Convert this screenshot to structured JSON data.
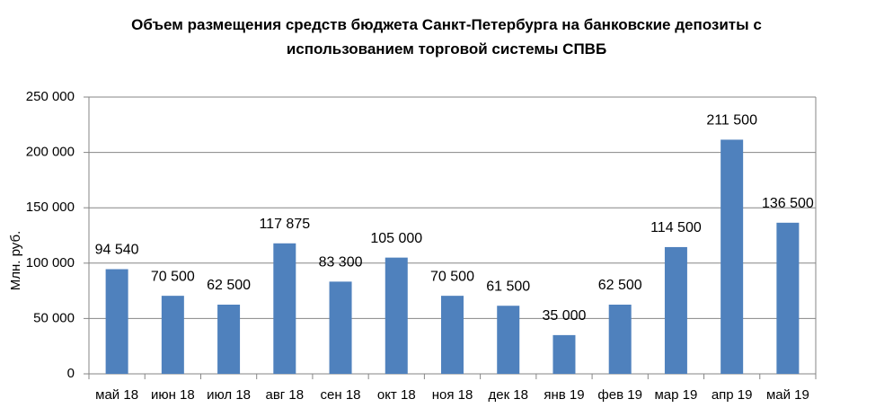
{
  "chart_data": {
    "type": "bar",
    "title": "Объем размещения средств бюджета Санкт-Петербурга на банковские депозиты с использованием торговой системы СПВБ",
    "y_label": "Млн. руб.",
    "categories": [
      "май 18",
      "июн 18",
      "июл 18",
      "авг 18",
      "сен 18",
      "окт 18",
      "ноя 18",
      "дек 18",
      "янв 19",
      "фев 19",
      "мар 19",
      "апр 19",
      "май 19"
    ],
    "values": [
      94540,
      70500,
      62500,
      117875,
      83300,
      105000,
      70500,
      61500,
      35000,
      62500,
      114500,
      211500,
      136500
    ],
    "value_labels": [
      "94 540",
      "70 500",
      "62 500",
      "117 875",
      "83 300",
      "105 000",
      "70 500",
      "61 500",
      "35 000",
      "62 500",
      "114 500",
      "211 500",
      "136 500"
    ],
    "color": "#4f81bd",
    "ylim": [
      0,
      250000
    ],
    "yticks": [
      0,
      {
        "value": 50000,
        "label": "50 000"
      },
      {
        "value": 100000,
        "label": "100 000"
      },
      {
        "value": 150000,
        "label": "150 000"
      },
      {
        "value": 200000,
        "label": "200 000"
      },
      {
        "value": 250000,
        "label": "250 000"
      }
    ],
    "grid": true
  }
}
